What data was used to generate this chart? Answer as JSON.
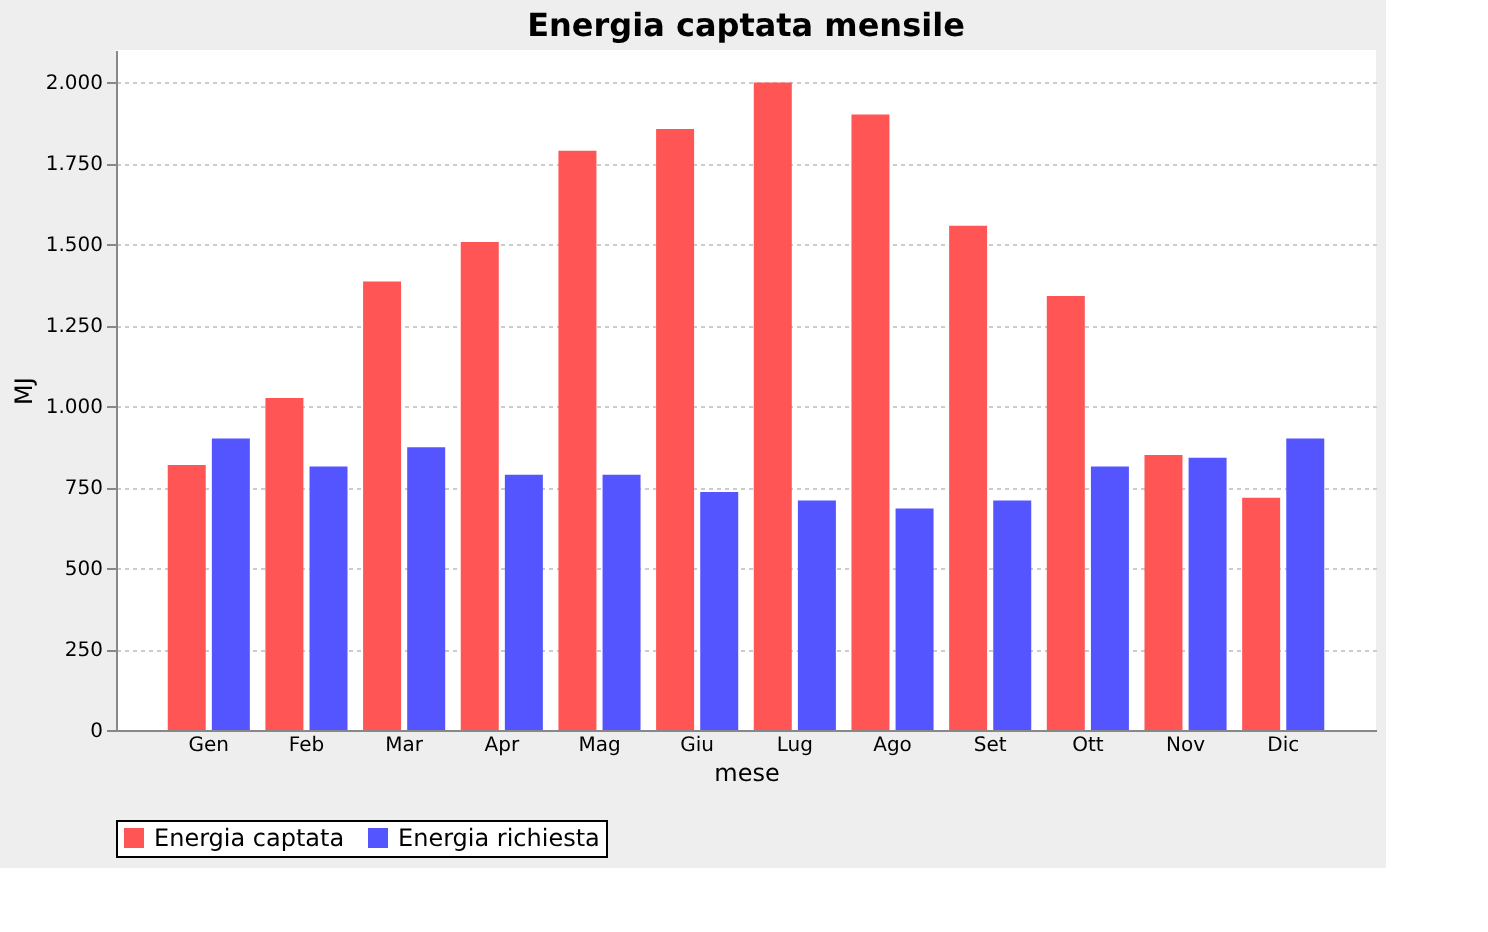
{
  "chart_data": {
    "type": "bar",
    "title": "Energia captata mensile",
    "xlabel": "mese",
    "ylabel": "MJ",
    "categories": [
      "Gen",
      "Feb",
      "Mar",
      "Apr",
      "Mag",
      "Giu",
      "Lug",
      "Ago",
      "Set",
      "Ott",
      "Nov",
      "Dic"
    ],
    "series": [
      {
        "name": "Energia captata",
        "color": "#ff5555",
        "values": [
          818,
          1025,
          1385,
          1507,
          1789,
          1856,
          2000,
          1901,
          1557,
          1340,
          849,
          717
        ]
      },
      {
        "name": "Energia richiesta",
        "color": "#5555ff",
        "values": [
          900,
          814,
          873,
          788,
          788,
          735,
          709,
          684,
          709,
          814,
          841,
          900
        ]
      }
    ],
    "ylim": [
      0,
      2100
    ],
    "yticks": [
      0,
      250,
      500,
      750,
      {
        "value": 1000,
        "label": "1.000"
      },
      {
        "value": 1250,
        "label": "1.250"
      },
      {
        "value": 1500,
        "label": "1.500"
      },
      {
        "value": 1750,
        "label": "1.750"
      },
      {
        "value": 2000,
        "label": "2.000"
      }
    ],
    "grid": "y",
    "legend": "bottom"
  }
}
